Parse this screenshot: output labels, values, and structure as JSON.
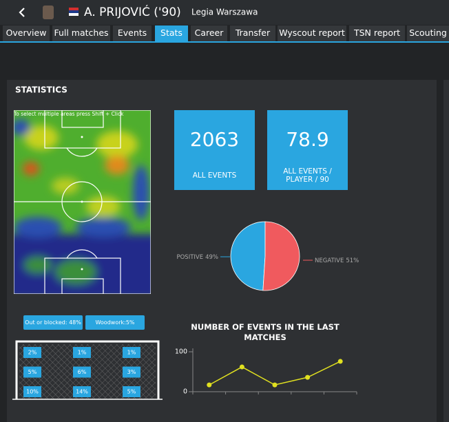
{
  "header": {
    "name": "A. PRIJOVIĆ ('90)",
    "club": "Legia Warszawa"
  },
  "tabs": [
    "Overview",
    "Full matches",
    "Events",
    "Stats",
    "Career",
    "Transfer",
    "Wyscout report",
    "TSN report",
    "Scouting"
  ],
  "active_tab": 3,
  "section_title": "STATISTICS",
  "heatmap": {
    "hint": "To select multiple areas press Shift + Click"
  },
  "kpis": [
    {
      "value": 2063,
      "label": "ALL EVENTS"
    },
    {
      "value": 78.9,
      "label": "ALL EVENTS / PLAYER / 90"
    }
  ],
  "goal": {
    "buttons": [
      "Out or blocked: 48%",
      "Woodwork:5%"
    ],
    "zones": [
      [
        "2%",
        "1%",
        "1%"
      ],
      [
        "5%",
        "6%",
        "3%"
      ],
      [
        "10%",
        "14%",
        "5%"
      ]
    ]
  },
  "chart_data": [
    {
      "type": "pie",
      "categories": [
        "POSITIVE",
        "NEGATIVE"
      ],
      "values": [
        49,
        51
      ],
      "value_labels": [
        "49%",
        "51%"
      ],
      "colors": [
        "#2aa6e0",
        "#f05a5e"
      ]
    },
    {
      "type": "line",
      "title": "NUMBER OF EVENTS IN THE LAST MATCHES",
      "categories": [
        null,
        null,
        null,
        null,
        null
      ],
      "values": [
        17,
        62,
        17,
        36,
        76
      ],
      "color": "#e0e020",
      "ylim": [
        0,
        100
      ],
      "yticks": [
        0,
        100
      ]
    }
  ]
}
